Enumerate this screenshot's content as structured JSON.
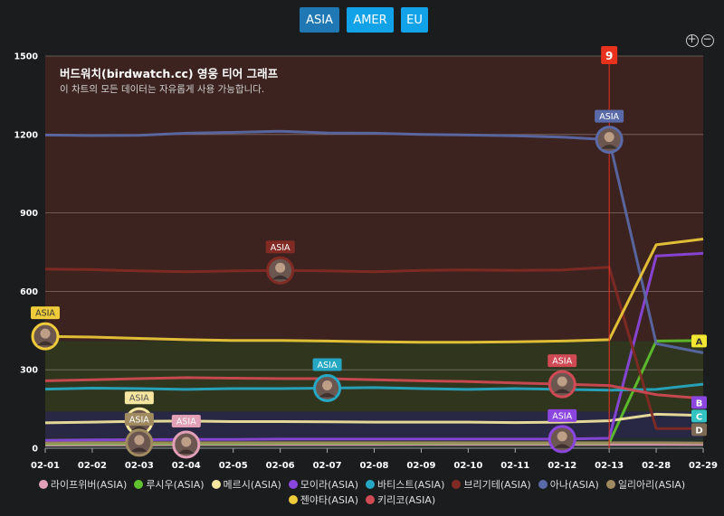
{
  "regions": {
    "asia": "ASIA",
    "amer": "AMER",
    "eu": "EU"
  },
  "zoom": {
    "in_symbol": "+",
    "out_symbol": "−"
  },
  "chart_data": {
    "type": "line",
    "title": "버드워치(birdwatch.cc) 영웅 티어 그래프",
    "subtitle": "이 차트의 모든 데이터는 자유롭게 사용 가능합니다.",
    "x": [
      "02-01",
      "02-02",
      "02-03",
      "02-04",
      "02-05",
      "02-06",
      "02-07",
      "02-08",
      "02-09",
      "02-10",
      "02-11",
      "02-12",
      "02-13",
      "02-28",
      "02-29"
    ],
    "y_ticks": [
      "0",
      "300",
      "600",
      "900",
      "1200",
      "1500"
    ],
    "ylim": [
      0,
      1500
    ],
    "grid": true,
    "legend_position": "bottom",
    "tier_bands": [
      {
        "label": "A",
        "from": 410,
        "to": 1500,
        "color": "#3d2320",
        "label_color": "#f2e632",
        "label_value": 410
      },
      {
        "label": "B",
        "from": 140,
        "to": 410,
        "color": "#30351e",
        "label_color": "#8c46e0",
        "label_value": 175
      },
      {
        "label": "C",
        "from": 40,
        "to": 140,
        "color": "#282844",
        "label_color": "#33c3c3",
        "label_value": 125
      },
      {
        "label": "D",
        "from": 0,
        "to": 40,
        "color": "#24302b",
        "label_color": "#7d6a55",
        "label_value": 80
      }
    ],
    "marker": {
      "label": "9",
      "x": "02-13",
      "color": "#e8321e"
    },
    "series": [
      {
        "name": "라이프위버(ASIA)",
        "color": "#e2a0b7",
        "values": [
          12,
          13,
          13,
          14,
          14,
          14,
          14,
          14,
          15,
          15,
          15,
          15,
          15,
          15,
          14
        ]
      },
      {
        "name": "루시우(ASIA)",
        "color": "#5fc22c",
        "values": [
          17,
          18,
          18,
          18,
          18,
          19,
          19,
          19,
          19,
          20,
          20,
          20,
          20,
          410,
          412
        ]
      },
      {
        "name": "메르시(ASIA)",
        "color": "#f5e6a0",
        "values": [
          97,
          100,
          103,
          104,
          102,
          102,
          101,
          100,
          100,
          100,
          98,
          100,
          105,
          130,
          125
        ]
      },
      {
        "name": "모이라(ASIA)",
        "color": "#8c46e0",
        "values": [
          30,
          32,
          33,
          34,
          34,
          35,
          35,
          35,
          35,
          35,
          35,
          35,
          38,
          735,
          745
        ]
      },
      {
        "name": "바티스트(ASIA)",
        "color": "#26a8c4",
        "values": [
          226,
          230,
          228,
          225,
          228,
          228,
          230,
          232,
          228,
          225,
          228,
          225,
          222,
          225,
          245
        ]
      },
      {
        "name": "브리기테(ASIA)",
        "color": "#822a24",
        "values": [
          685,
          683,
          678,
          675,
          678,
          680,
          678,
          675,
          680,
          682,
          680,
          682,
          692,
          75,
          75
        ]
      },
      {
        "name": "아나(ASIA)",
        "color": "#5a6aa8",
        "values": [
          1198,
          1196,
          1197,
          1205,
          1208,
          1212,
          1206,
          1205,
          1200,
          1198,
          1195,
          1190,
          1180,
          400,
          365
        ]
      },
      {
        "name": "일리아리(ASIA)",
        "color": "#a08a60",
        "values": [
          20,
          21,
          21,
          21,
          21,
          21,
          21,
          21,
          21,
          21,
          21,
          21,
          21,
          21,
          20
        ]
      },
      {
        "name": "젠야타(ASIA)",
        "color": "#eecb3a",
        "values": [
          428,
          425,
          420,
          415,
          412,
          412,
          410,
          407,
          405,
          405,
          407,
          410,
          415,
          778,
          800
        ]
      },
      {
        "name": "키리코(ASIA)",
        "color": "#d04a55",
        "values": [
          258,
          262,
          266,
          270,
          268,
          266,
          266,
          262,
          258,
          255,
          250,
          245,
          240,
          205,
          190
        ]
      }
    ],
    "annotations": [
      {
        "text": "ASIA",
        "x": "02-01",
        "series": 8,
        "color": "#eecb3a",
        "text_color": "#333"
      },
      {
        "text": "ASIA",
        "x": "02-03",
        "series": 2,
        "color": "#f5e6a0",
        "text_color": "#555"
      },
      {
        "text": "ASIA",
        "x": "02-03",
        "series": 7,
        "color": "#a08a60",
        "text_color": "#fff"
      },
      {
        "text": "ASIA",
        "x": "02-04",
        "series": 0,
        "color": "#e2a0b7",
        "text_color": "#fff"
      },
      {
        "text": "ASIA",
        "x": "02-06",
        "series": 5,
        "color": "#822a24",
        "text_color": "#fff"
      },
      {
        "text": "ASIA",
        "x": "02-07",
        "series": 4,
        "color": "#26a8c4",
        "text_color": "#fff"
      },
      {
        "text": "ASIA",
        "x": "02-12",
        "series": 9,
        "color": "#d04a55",
        "text_color": "#fff"
      },
      {
        "text": "ASIA",
        "x": "02-12",
        "series": 3,
        "color": "#8c46e0",
        "text_color": "#fff"
      },
      {
        "text": "ASIA",
        "x": "02-13",
        "series": 6,
        "color": "#5a6aa8",
        "text_color": "#fff"
      }
    ]
  }
}
